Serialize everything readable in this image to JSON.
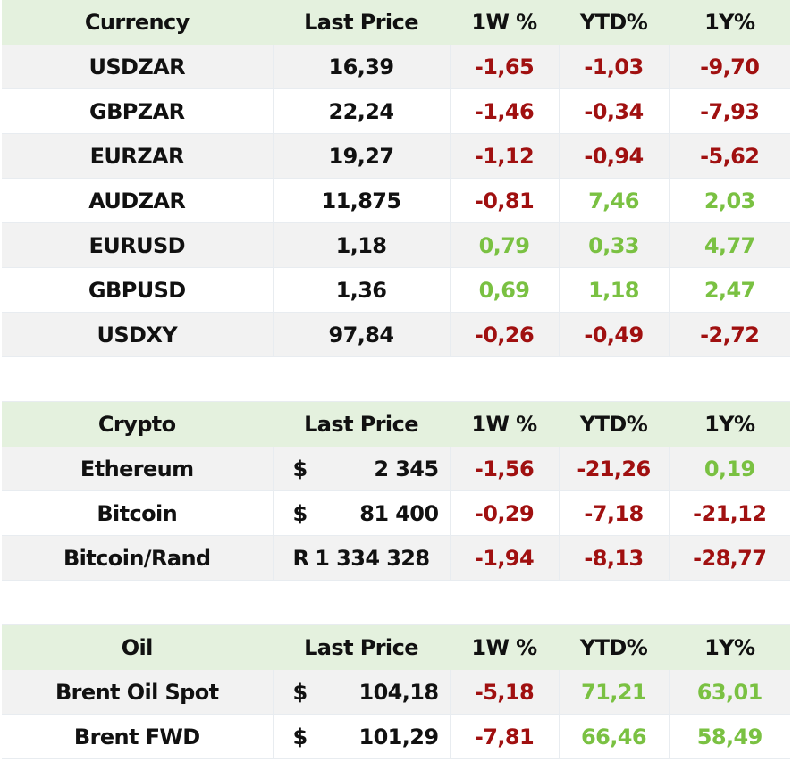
{
  "headers": {
    "currency": [
      "Currency",
      "Last Price",
      "1W %",
      "YTD%",
      "1Y%"
    ],
    "crypto": [
      "Crypto",
      "Last Price",
      "1W %",
      "YTD%",
      "1Y%"
    ],
    "oil": [
      "Oil",
      "Last Price",
      "1W %",
      "YTD%",
      "1Y%"
    ]
  },
  "currency_rows": [
    {
      "name": "USDZAR",
      "price": "16,39",
      "w1": "-1,65",
      "ytd": "-1,03",
      "y1": "-9,70"
    },
    {
      "name": "GBPZAR",
      "price": "22,24",
      "w1": "-1,46",
      "ytd": "-0,34",
      "y1": "-7,93"
    },
    {
      "name": "EURZAR",
      "price": "19,27",
      "w1": "-1,12",
      "ytd": "-0,94",
      "y1": "-5,62"
    },
    {
      "name": "AUDZAR",
      "price": "11,875",
      "w1": "-0,81",
      "ytd": "7,46",
      "y1": "2,03"
    },
    {
      "name": "EURUSD",
      "price": "1,18",
      "w1": "0,79",
      "ytd": "0,33",
      "y1": "4,77"
    },
    {
      "name": "GBPUSD",
      "price": "1,36",
      "w1": "0,69",
      "ytd": "1,18",
      "y1": "2,47"
    },
    {
      "name": "USDXY",
      "price": "97,84",
      "w1": "-0,26",
      "ytd": "-0,49",
      "y1": "-2,72"
    }
  ],
  "crypto_rows": [
    {
      "name": "Ethereum",
      "symbol": "$",
      "price": "2 345",
      "w1": "-1,56",
      "ytd": "-21,26",
      "y1": "0,19"
    },
    {
      "name": "Bitcoin",
      "symbol": "$",
      "price": "81 400",
      "w1": "-0,29",
      "ytd": "-7,18",
      "y1": "-21,12"
    },
    {
      "name": "Bitcoin/Rand",
      "symbol": "R",
      "price": "1 334 328",
      "w1": "-1,94",
      "ytd": "-8,13",
      "y1": "-28,77"
    }
  ],
  "oil_rows": [
    {
      "name": "Brent Oil Spot",
      "symbol": "$",
      "price": "104,18",
      "w1": "-5,18",
      "ytd": "71,21",
      "y1": "63,01"
    },
    {
      "name": "Brent FWD",
      "symbol": "$",
      "price": "101,29",
      "w1": "-7,81",
      "ytd": "66,46",
      "y1": "58,49"
    }
  ],
  "colors": {
    "header_bg": "#e4f1de",
    "shade_row": "#f2f2f2",
    "negative": "#a01010",
    "positive": "#7ac142",
    "text": "#111111"
  }
}
